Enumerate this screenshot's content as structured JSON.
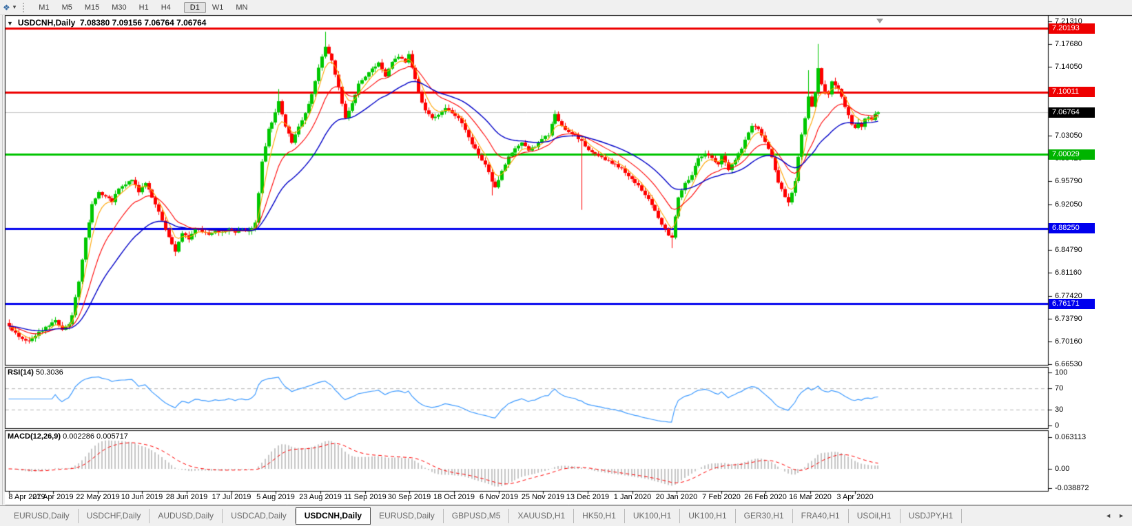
{
  "toolbar": {
    "chart_tool_icon": "❖",
    "dropdown_caret": "▾",
    "timeframes": [
      "M1",
      "M5",
      "M15",
      "M30",
      "H1",
      "H4",
      "D1",
      "W1",
      "MN"
    ],
    "active_timeframe": "D1"
  },
  "chart": {
    "title": "USDCNH,Daily",
    "ohlc": "7.08380 7.09156 7.06764 7.06764",
    "title_caret": "▼"
  },
  "price_axis": {
    "ticks": [
      "7.21310",
      "7.17680",
      "7.14050",
      "7.03050",
      "6.99420",
      "6.95790",
      "6.92050",
      "6.84790",
      "6.81160",
      "6.77420",
      "6.73790",
      "6.70160",
      "6.66530"
    ],
    "price_labels": [
      {
        "value": "7.20193",
        "price": 7.20193,
        "bg": "#ee0000"
      },
      {
        "value": "7.10011",
        "price": 7.10011,
        "bg": "#ee0000"
      },
      {
        "value": "7.06764",
        "price": 7.06764,
        "bg": "#000000"
      },
      {
        "value": "7.00029",
        "price": 7.00029,
        "bg": "#00b400"
      },
      {
        "value": "6.88250",
        "price": 6.8825,
        "bg": "#0000ee"
      },
      {
        "value": "6.76171",
        "price": 6.76171,
        "bg": "#0000ee"
      }
    ]
  },
  "hlines": [
    {
      "price": 7.20193,
      "color": "#ee0000",
      "width": 3
    },
    {
      "price": 7.10011,
      "color": "#ee0000",
      "width": 3
    },
    {
      "price": 7.06764,
      "color": "#c8c8c8",
      "width": 1
    },
    {
      "price": 7.00029,
      "color": "#00c400",
      "width": 3
    },
    {
      "price": 6.8825,
      "color": "#0000ee",
      "width": 3
    },
    {
      "price": 6.76171,
      "color": "#0000ee",
      "width": 3
    }
  ],
  "chart_data": {
    "type": "candlestick",
    "symbol": "USDCNH",
    "timeframe": "Daily",
    "bar_count": 262,
    "price_range": [
      6.6653,
      7.2131
    ],
    "bull_color": "#00c800",
    "bear_color": "#ff0000",
    "x_labels": [
      "8 Apr 2019",
      "27 Apr 2019",
      "22 May 2019",
      "10 Jun 2019",
      "28 Jun 2019",
      "17 Jul 2019",
      "5 Aug 2019",
      "23 Aug 2019",
      "11 Sep 2019",
      "30 Sep 2019",
      "18 Oct 2019",
      "6 Nov 2019",
      "25 Nov 2019",
      "13 Dec 2019",
      "1 Jan 2020",
      "20 Jan 2020",
      "7 Feb 2020",
      "26 Feb 2020",
      "16 Mar 2020",
      "3 Apr 2020"
    ],
    "close_path": [
      [
        0,
        6.726
      ],
      [
        2,
        6.714
      ],
      [
        4,
        6.706
      ],
      [
        6,
        6.702
      ],
      [
        8,
        6.712
      ],
      [
        10,
        6.72
      ],
      [
        12,
        6.727
      ],
      [
        14,
        6.734
      ],
      [
        16,
        6.722
      ],
      [
        18,
        6.731
      ],
      [
        19,
        6.745
      ],
      [
        21,
        6.797
      ],
      [
        23,
        6.866
      ],
      [
        25,
        6.92
      ],
      [
        27,
        6.942
      ],
      [
        29,
        6.932
      ],
      [
        31,
        6.926
      ],
      [
        33,
        6.947
      ],
      [
        35,
        6.952
      ],
      [
        37,
        6.96
      ],
      [
        39,
        6.94
      ],
      [
        41,
        6.954
      ],
      [
        43,
        6.932
      ],
      [
        45,
        6.91
      ],
      [
        47,
        6.88
      ],
      [
        49,
        6.856
      ],
      [
        50,
        6.846
      ],
      [
        52,
        6.876
      ],
      [
        54,
        6.866
      ],
      [
        56,
        6.884
      ],
      [
        58,
        6.878
      ],
      [
        60,
        6.872
      ],
      [
        62,
        6.879
      ],
      [
        64,
        6.875
      ],
      [
        66,
        6.881
      ],
      [
        68,
        6.876
      ],
      [
        70,
        6.88
      ],
      [
        72,
        6.877
      ],
      [
        74,
        6.89
      ],
      [
        75,
        6.94
      ],
      [
        76,
        6.988
      ],
      [
        77,
        7.012
      ],
      [
        78,
        7.04
      ],
      [
        80,
        7.066
      ],
      [
        81,
        7.086
      ],
      [
        83,
        7.046
      ],
      [
        85,
        7.02
      ],
      [
        87,
        7.046
      ],
      [
        89,
        7.066
      ],
      [
        91,
        7.096
      ],
      [
        93,
        7.138
      ],
      [
        95,
        7.174
      ],
      [
        97,
        7.15
      ],
      [
        99,
        7.108
      ],
      [
        101,
        7.058
      ],
      [
        103,
        7.082
      ],
      [
        105,
        7.112
      ],
      [
        107,
        7.126
      ],
      [
        109,
        7.138
      ],
      [
        111,
        7.146
      ],
      [
        113,
        7.126
      ],
      [
        115,
        7.148
      ],
      [
        117,
        7.156
      ],
      [
        119,
        7.148
      ],
      [
        120,
        7.16
      ],
      [
        121,
        7.14
      ],
      [
        123,
        7.1
      ],
      [
        125,
        7.07
      ],
      [
        127,
        7.058
      ],
      [
        129,
        7.064
      ],
      [
        131,
        7.074
      ],
      [
        133,
        7.068
      ],
      [
        135,
        7.058
      ],
      [
        137,
        7.04
      ],
      [
        139,
        7.018
      ],
      [
        141,
        7.0
      ],
      [
        143,
        6.984
      ],
      [
        145,
        6.958
      ],
      [
        146,
        6.948
      ],
      [
        148,
        6.974
      ],
      [
        150,
        6.998
      ],
      [
        152,
        7.01
      ],
      [
        154,
        7.02
      ],
      [
        156,
        7.008
      ],
      [
        158,
        7.014
      ],
      [
        160,
        7.026
      ],
      [
        162,
        7.032
      ],
      [
        164,
        7.064
      ],
      [
        166,
        7.046
      ],
      [
        168,
        7.036
      ],
      [
        170,
        7.03
      ],
      [
        172,
        7.022
      ],
      [
        174,
        7.008
      ],
      [
        177,
        6.997
      ],
      [
        181,
        6.987
      ],
      [
        184,
        6.977
      ],
      [
        187,
        6.962
      ],
      [
        190,
        6.944
      ],
      [
        193,
        6.92
      ],
      [
        196,
        6.888
      ],
      [
        198,
        6.872
      ],
      [
        199,
        6.866
      ],
      [
        200,
        6.9
      ],
      [
        201,
        6.932
      ],
      [
        203,
        6.954
      ],
      [
        205,
        6.968
      ],
      [
        207,
        6.994
      ],
      [
        209,
        7.002
      ],
      [
        211,
        6.994
      ],
      [
        213,
        6.986
      ],
      [
        214,
        6.997
      ],
      [
        216,
        6.977
      ],
      [
        218,
        6.991
      ],
      [
        220,
        7.011
      ],
      [
        222,
        7.034
      ],
      [
        223,
        7.047
      ],
      [
        225,
        7.041
      ],
      [
        227,
        7.021
      ],
      [
        229,
        6.997
      ],
      [
        231,
        6.957
      ],
      [
        233,
        6.931
      ],
      [
        234,
        6.924
      ],
      [
        236,
        6.957
      ],
      [
        237,
        6.997
      ],
      [
        238,
        7.031
      ],
      [
        239,
        7.06
      ],
      [
        240,
        7.093
      ],
      [
        241,
        7.077
      ],
      [
        242,
        7.1
      ],
      [
        243,
        7.137
      ],
      [
        244,
        7.114
      ],
      [
        245,
        7.1
      ],
      [
        246,
        7.097
      ],
      [
        247,
        7.117
      ],
      [
        248,
        7.11
      ],
      [
        249,
        7.107
      ],
      [
        250,
        7.093
      ],
      [
        251,
        7.077
      ],
      [
        252,
        7.063
      ],
      [
        253,
        7.047
      ],
      [
        254,
        7.043
      ],
      [
        255,
        7.051
      ],
      [
        256,
        7.043
      ],
      [
        257,
        7.057
      ],
      [
        258,
        7.061
      ],
      [
        259,
        7.054
      ],
      [
        260,
        7.064
      ],
      [
        261,
        7.068
      ]
    ],
    "extremes": [
      {
        "i": 5,
        "low": 6.698
      },
      {
        "i": 50,
        "low": 6.838
      },
      {
        "i": 81,
        "high": 7.105
      },
      {
        "i": 95,
        "high": 7.1965
      },
      {
        "i": 120,
        "high": 7.166
      },
      {
        "i": 145,
        "low": 6.935
      },
      {
        "i": 172,
        "low": 6.912
      },
      {
        "i": 199,
        "low": 6.851
      },
      {
        "i": 240,
        "high": 7.135
      },
      {
        "i": 243,
        "high": 7.177
      }
    ],
    "indicators": {
      "ma_fast": {
        "type": "EMA",
        "period": 5,
        "color": "#ffa500"
      },
      "ma_mid": {
        "type": "EMA",
        "period": 14,
        "color": "#ff0000"
      },
      "ma_slow": {
        "type": "EMA",
        "period": 30,
        "color": "#0000c8"
      },
      "rsi": {
        "period": 14,
        "color": "#3e9bff",
        "levels": [
          70,
          30
        ],
        "level_color": "#b4b4b4"
      },
      "macd": {
        "fast": 12,
        "slow": 26,
        "signal": 9,
        "bar_color": "#c6c6c6",
        "signal_color": "#ff0000"
      }
    }
  },
  "rsi_panel": {
    "label": "RSI(14)",
    "value": "50.3036",
    "ticks": [
      "100",
      "70",
      "30",
      "0"
    ],
    "tick_values": [
      100,
      70,
      30,
      0
    ]
  },
  "macd_panel": {
    "label": "MACD(12,26,9)",
    "values": "0.002286 0.005717",
    "ticks": [
      "0.063113",
      "0.00",
      "-0.038872"
    ],
    "tick_values": [
      0.063113,
      0,
      -0.038872
    ]
  },
  "tabbar": {
    "scroll_left": "◄",
    "scroll_right": "►",
    "tabs": [
      {
        "label": "EURUSD,Daily",
        "active": false
      },
      {
        "label": "USDCHF,Daily",
        "active": false
      },
      {
        "label": "AUDUSD,Daily",
        "active": false
      },
      {
        "label": "USDCAD,Daily",
        "active": false
      },
      {
        "label": "USDCNH,Daily",
        "active": true
      },
      {
        "label": "EURUSD,Daily",
        "active": false
      },
      {
        "label": "GBPUSD,M5",
        "active": false
      },
      {
        "label": "XAUUSD,H1",
        "active": false
      },
      {
        "label": "HK50,H1",
        "active": false
      },
      {
        "label": "UK100,H1",
        "active": false
      },
      {
        "label": "UK100,H1",
        "active": false
      },
      {
        "label": "GER30,H1",
        "active": false
      },
      {
        "label": "FRA40,H1",
        "active": false
      },
      {
        "label": "USOil,H1",
        "active": false
      },
      {
        "label": "USDJPY,H1",
        "active": false
      }
    ]
  }
}
